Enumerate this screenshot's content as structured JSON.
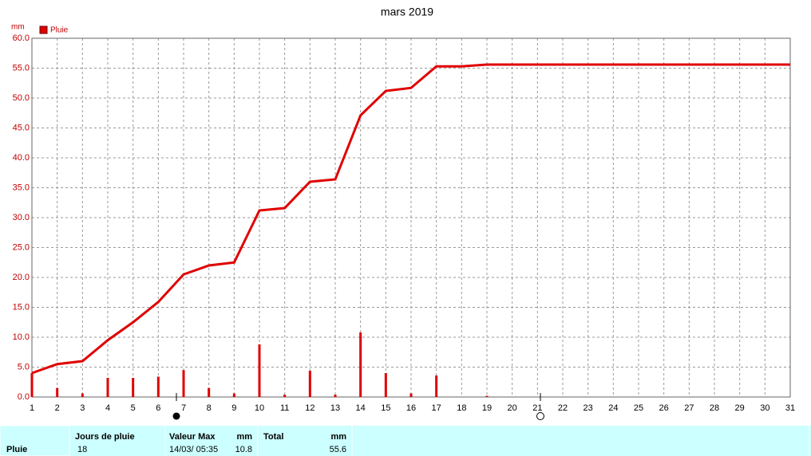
{
  "chart_data": {
    "type": "line",
    "title": "mars 2019",
    "ylabel": "mm",
    "x": [
      1,
      2,
      3,
      4,
      5,
      6,
      7,
      8,
      9,
      10,
      11,
      12,
      13,
      14,
      15,
      16,
      17,
      18,
      19,
      20,
      21,
      22,
      23,
      24,
      25,
      26,
      27,
      28,
      29,
      30,
      31
    ],
    "series": [
      {
        "name": "Pluie",
        "type": "bar",
        "color": "#e00000",
        "values": [
          4.0,
          1.5,
          0.6,
          3.2,
          3.2,
          3.4,
          4.5,
          1.5,
          0.6,
          8.8,
          0.4,
          4.4,
          0.4,
          10.8,
          4.0,
          0.6,
          3.6,
          0,
          0.2,
          0,
          0,
          0,
          0,
          0,
          0,
          0,
          0,
          0,
          0,
          0,
          0
        ]
      },
      {
        "type": "line",
        "color": "#e00000",
        "values": [
          4.0,
          5.5,
          6.0,
          9.5,
          12.5,
          15.9,
          20.5,
          22.0,
          22.5,
          31.2,
          31.6,
          36.0,
          36.4,
          47.1,
          51.2,
          51.7,
          55.3,
          55.3,
          55.6,
          55.6,
          55.6,
          55.6,
          55.6,
          55.6,
          55.6,
          55.6,
          55.6,
          55.6,
          55.6,
          55.6,
          55.6
        ]
      }
    ],
    "xlim": [
      1,
      31
    ],
    "xticks": [
      1,
      2,
      3,
      4,
      5,
      6,
      7,
      8,
      9,
      10,
      11,
      12,
      13,
      14,
      15,
      16,
      17,
      18,
      19,
      20,
      21,
      22,
      23,
      24,
      25,
      26,
      27,
      28,
      29,
      30,
      31
    ],
    "ylim": [
      0,
      60
    ],
    "yticks": [
      {
        "value": 0,
        "label": "0.0"
      },
      {
        "value": 5,
        "label": "5.0"
      },
      {
        "value": 10,
        "label": "10.0"
      },
      {
        "value": 15,
        "label": "15.0"
      },
      {
        "value": 20,
        "label": "20.0"
      },
      {
        "value": 25,
        "label": "25.0"
      },
      {
        "value": 30,
        "label": "30.0"
      },
      {
        "value": 35,
        "label": "35.0"
      },
      {
        "value": 40,
        "label": "40.0"
      },
      {
        "value": 45,
        "label": "45.0"
      },
      {
        "value": 50,
        "label": "50.0"
      },
      {
        "value": 55,
        "label": "55.0"
      },
      {
        "value": 60,
        "label": "60.0"
      }
    ],
    "grid": true,
    "legend": "top-left"
  },
  "table": {
    "header": [
      "Jours de pluie",
      "Valeur Max",
      "mm",
      "Total",
      "mm"
    ],
    "rows": [
      [
        "Pluie",
        "18",
        "14/03/ 05:35",
        "10.8",
        "55.6"
      ]
    ]
  }
}
